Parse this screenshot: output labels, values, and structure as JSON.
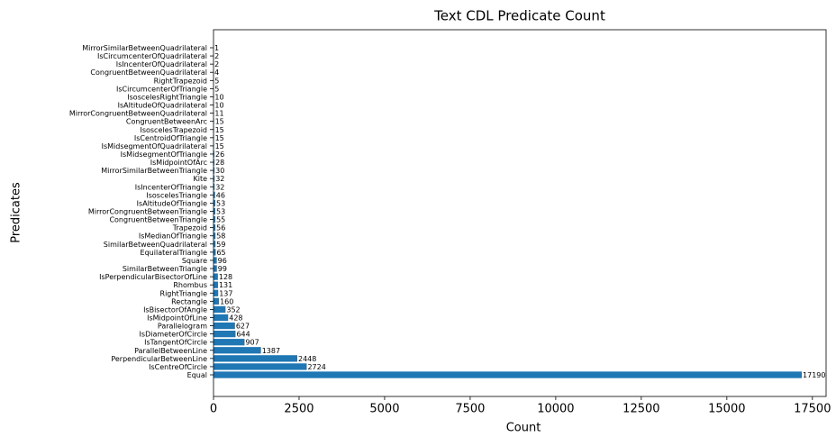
{
  "chart_data": {
    "type": "barh",
    "title": "Text CDL Predicate Count",
    "x_label": "Count",
    "y_label": "Predicates",
    "categories": [
      "Equal",
      "IsCentreOfCircle",
      "PerpendicularBetweenLine",
      "ParallelBetweenLine",
      "IsTangentOfCircle",
      "IsDiameterOfCircle",
      "Parallelogram",
      "IsMidpointOfLine",
      "IsBisectorOfAngle",
      "Rectangle",
      "RightTriangle",
      "Rhombus",
      "IsPerpendicularBisectorOfLine",
      "SimilarBetweenTriangle",
      "Square",
      "EquilateralTriangle",
      "SimilarBetweenQuadrilateral",
      "IsMedianOfTriangle",
      "Trapezoid",
      "CongruentBetweenTriangle",
      "MirrorCongruentBetweenTriangle",
      "IsAltitudeOfTriangle",
      "IsoscelesTriangle",
      "IsIncenterOfTriangle",
      "Kite",
      "MirrorSimilarBetweenTriangle",
      "IsMidpointOfArc",
      "IsMidsegmentOfTriangle",
      "IsMidsegmentOfQuadrilateral",
      "IsCentroidOfTriangle",
      "IsoscelesTrapezoid",
      "CongruentBetweenArc",
      "MirrorCongruentBetweenQuadrilateral",
      "IsAltitudeOfQuadrilateral",
      "IsoscelesRightTriangle",
      "IsCircumcenterOfTriangle",
      "RightTrapezoid",
      "CongruentBetweenQuadrilateral",
      "IsIncenterOfQuadrilateral",
      "IsCircumcenterOfQuadrilateral",
      "MirrorSimilarBetweenQuadrilateral"
    ],
    "values": [
      17190,
      2724,
      2448,
      1387,
      907,
      644,
      627,
      428,
      352,
      160,
      137,
      131,
      128,
      99,
      96,
      65,
      59,
      58,
      56,
      55,
      53,
      53,
      46,
      32,
      32,
      30,
      28,
      26,
      15,
      15,
      15,
      15,
      11,
      10,
      10,
      5,
      5,
      4,
      2,
      2,
      1
    ],
    "color": "#1f77b4",
    "xlim": [
      0,
      17900
    ],
    "xticks": [
      0,
      2500,
      5000,
      7500,
      10000,
      12500,
      15000,
      17500
    ]
  }
}
